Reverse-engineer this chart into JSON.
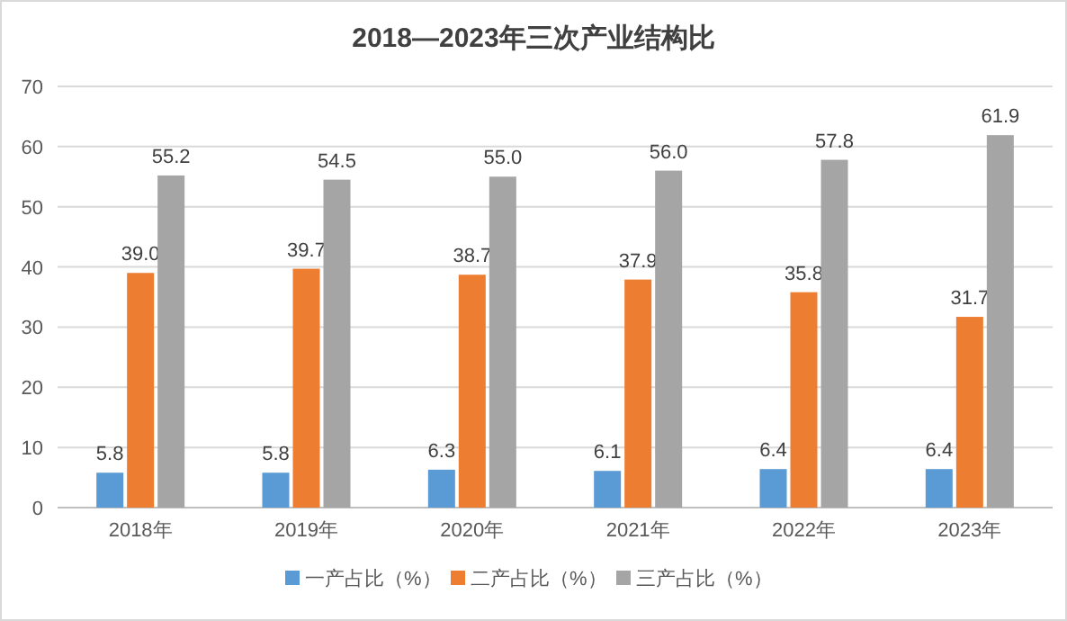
{
  "chart_data": {
    "type": "bar",
    "title": "2018—2023年三次产业结构比",
    "categories": [
      "2018年",
      "2019年",
      "2020年",
      "2021年",
      "2022年",
      "2023年"
    ],
    "series": [
      {
        "name": "一产占比（%）",
        "color": "#5b9bd5",
        "values": [
          5.8,
          5.8,
          6.3,
          6.1,
          6.4,
          6.4
        ],
        "value_labels": [
          "5.8",
          "5.8",
          "6.3",
          "6.1",
          "6.4",
          "6.4"
        ]
      },
      {
        "name": "二产占比（%）",
        "color": "#ed7d31",
        "values": [
          39.0,
          39.7,
          38.7,
          37.9,
          35.8,
          31.7
        ],
        "value_labels": [
          "39.0",
          "39.7",
          "38.7",
          "37.9",
          "35.8",
          "31.7"
        ]
      },
      {
        "name": "三产占比（%）",
        "color": "#a5a5a5",
        "values": [
          55.2,
          54.5,
          55.0,
          56.0,
          57.8,
          61.9
        ],
        "value_labels": [
          "55.2",
          "54.5",
          "55.0",
          "56.0",
          "57.8",
          "61.9"
        ]
      }
    ],
    "ylim": [
      0,
      70
    ],
    "yticks": [
      0,
      10,
      20,
      30,
      40,
      50,
      60,
      70
    ],
    "grid": "y",
    "legend": "bottom"
  }
}
